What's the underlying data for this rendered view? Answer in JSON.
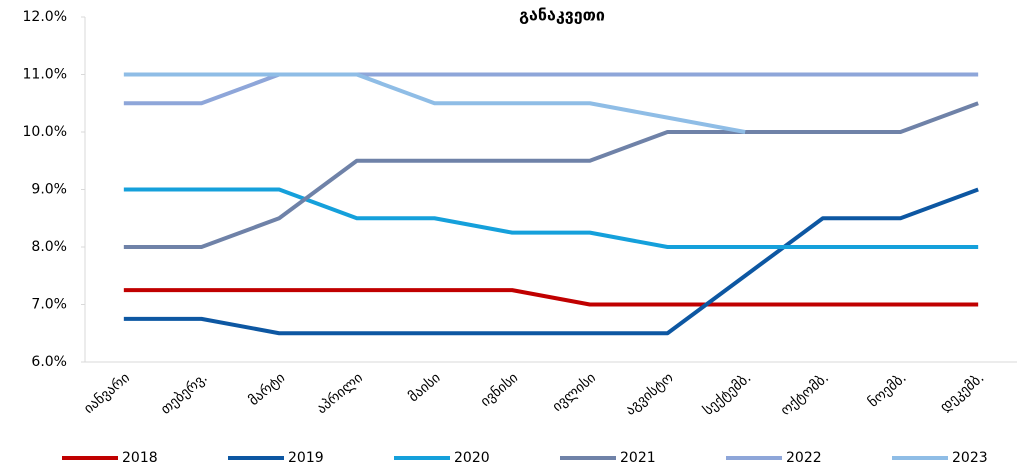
{
  "chart_data": {
    "type": "line",
    "title": "განაკვეთი",
    "categories": [
      "იანვარი",
      "თებერვ.",
      "მარტი",
      "აპრილი",
      "მაისი",
      "ივნისი",
      "ივლისი",
      "აგვისტო",
      "სექტემბ.",
      "ოქტომბ.",
      "ნოემბ.",
      "დეკემბ."
    ],
    "series": [
      {
        "name": "2018",
        "color": "#c00000",
        "values": [
          7.25,
          7.25,
          7.25,
          7.25,
          7.25,
          7.25,
          7,
          7,
          7,
          7,
          7,
          7
        ]
      },
      {
        "name": "2019",
        "color": "#0d57a2",
        "values": [
          6.75,
          6.75,
          6.5,
          6.5,
          6.5,
          6.5,
          6.5,
          6.5,
          7.5,
          8.5,
          8.5,
          9
        ]
      },
      {
        "name": "2020",
        "color": "#15a0db",
        "values": [
          9,
          9,
          9,
          8.5,
          8.5,
          8.25,
          8.25,
          8,
          8,
          8,
          8,
          8
        ]
      },
      {
        "name": "2021",
        "color": "#6f82a8",
        "values": [
          8,
          8,
          8.5,
          9.5,
          9.5,
          9.5,
          9.5,
          10,
          10,
          10,
          10,
          10.5
        ]
      },
      {
        "name": "2022",
        "color": "#8ea6d9",
        "values": [
          10.5,
          10.5,
          11,
          11,
          11,
          11,
          11,
          11,
          11,
          11,
          11,
          11
        ]
      },
      {
        "name": "2023",
        "color": "#8fbde6",
        "values": [
          11,
          11,
          11,
          11,
          10.5,
          10.5,
          10.5,
          10.25,
          10,
          null,
          null,
          null
        ]
      }
    ],
    "ylim": [
      6,
      12
    ],
    "yticks": [
      {
        "value": 6,
        "label": "6.0%"
      },
      {
        "value": 7,
        "label": "7.0%"
      },
      {
        "value": 8,
        "label": "8.0%"
      },
      {
        "value": 9,
        "label": "9.0%"
      },
      {
        "value": 10,
        "label": "10.0%"
      },
      {
        "value": 11,
        "label": "11.0%"
      },
      {
        "value": 12,
        "label": "12.0%"
      }
    ],
    "grid": false,
    "legend": "bottom"
  }
}
